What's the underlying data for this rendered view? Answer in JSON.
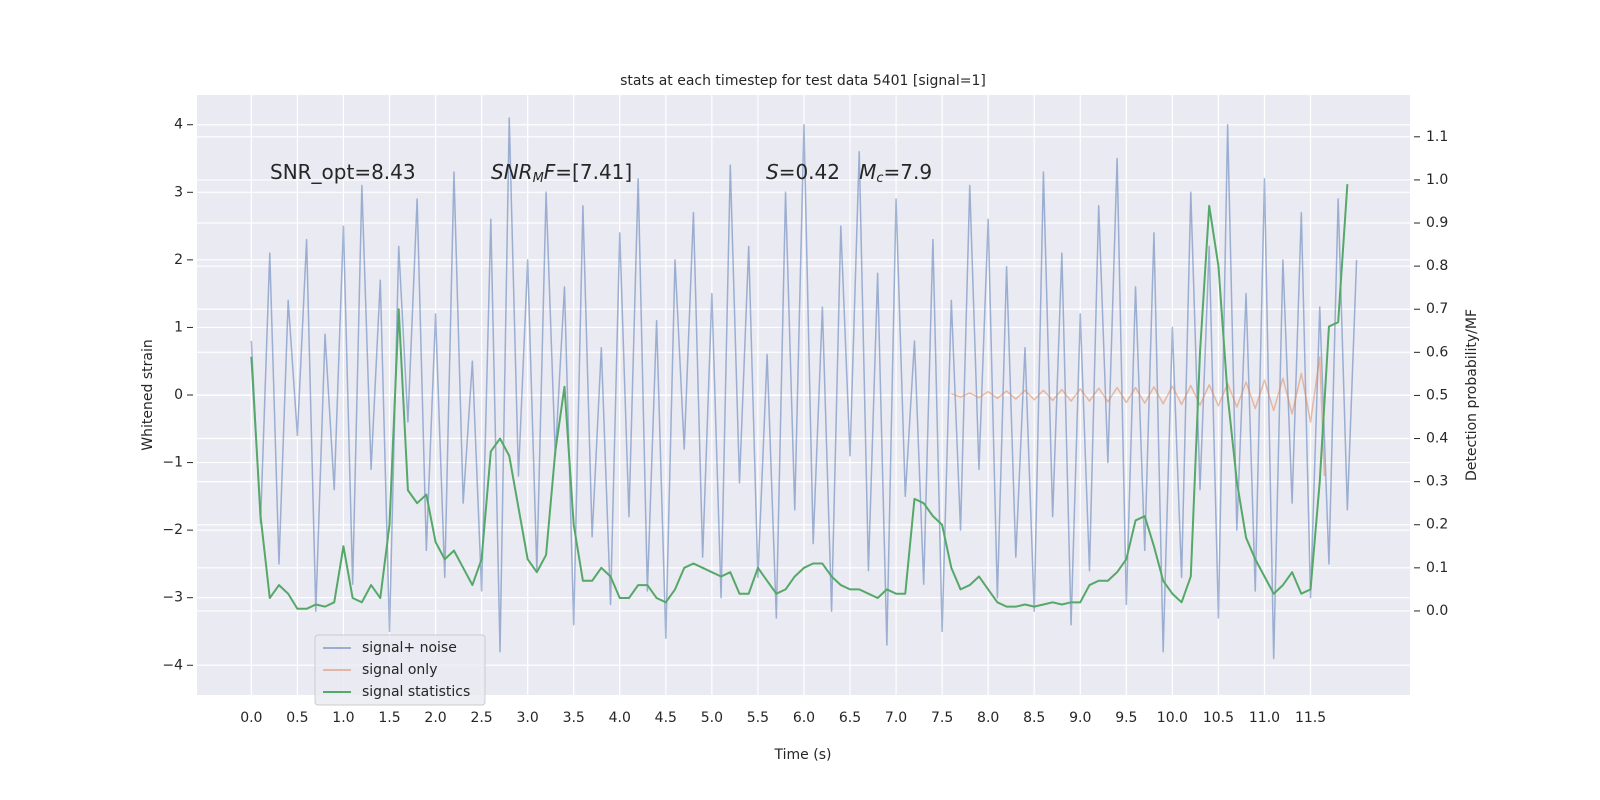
{
  "chart_data": {
    "type": "line",
    "title": "stats at each timestep for test data 5401 [signal=1]",
    "xlabel": "Time (s)",
    "ylabel": "Whitened strain",
    "y2label": "Detection probability/MF",
    "grid": true,
    "legend_loc": "lower left",
    "xlim": [
      -0.59,
      12.58
    ],
    "ylim": [
      -4.44,
      4.44
    ],
    "y2lim": [
      -0.195,
      1.197
    ],
    "xticks": [
      {
        "value": 0,
        "label": "0.0"
      },
      0.5,
      {
        "value": 1,
        "label": "1.0"
      },
      1.5,
      {
        "value": 2,
        "label": "2.0"
      },
      2.5,
      {
        "value": 3,
        "label": "3.0"
      },
      3.5,
      {
        "value": 4,
        "label": "4.0"
      },
      4.5,
      {
        "value": 5,
        "label": "5.0"
      },
      5.5,
      {
        "value": 6,
        "label": "6.0"
      },
      6.5,
      {
        "value": 7,
        "label": "7.0"
      },
      7.5,
      {
        "value": 8,
        "label": "8.0"
      },
      8.5,
      {
        "value": 9,
        "label": "9.0"
      },
      9.5,
      {
        "value": 10,
        "label": "10.0"
      },
      10.5,
      {
        "value": 11,
        "label": "11.0"
      },
      11.5
    ],
    "yticks": [
      {
        "value": -4,
        "label": "−4"
      },
      {
        "value": -3,
        "label": "−3"
      },
      {
        "value": -2,
        "label": "−2"
      },
      {
        "value": -1,
        "label": "−1"
      },
      0,
      1,
      2,
      3,
      4
    ],
    "y2ticks": [
      {
        "value": 0,
        "label": "0.0"
      },
      0.1,
      0.2,
      0.3,
      0.4,
      0.5,
      0.6,
      0.7,
      0.8,
      0.9,
      {
        "value": 1,
        "label": "1.0"
      },
      1.1
    ],
    "x": [
      0.0,
      0.1,
      0.2,
      0.3,
      0.4,
      0.5,
      0.6,
      0.7,
      0.8,
      0.9,
      1.0,
      1.1,
      1.2,
      1.3,
      1.4,
      1.5,
      1.6,
      1.7,
      1.8,
      1.9,
      2.0,
      2.1,
      2.2,
      2.3,
      2.4,
      2.5,
      2.6,
      2.7,
      2.8,
      2.9,
      3.0,
      3.1,
      3.2,
      3.3,
      3.4,
      3.5,
      3.6,
      3.7,
      3.8,
      3.9,
      4.0,
      4.1,
      4.2,
      4.3,
      4.4,
      4.5,
      4.6,
      4.7,
      4.8,
      4.9,
      5.0,
      5.1,
      5.2,
      5.3,
      5.4,
      5.5,
      5.6,
      5.7,
      5.8,
      5.9,
      6.0,
      6.1,
      6.2,
      6.3,
      6.4,
      6.5,
      6.6,
      6.7,
      6.8,
      6.9,
      7.0,
      7.1,
      7.2,
      7.3,
      7.4,
      7.5,
      7.6,
      7.7,
      7.8,
      7.9,
      8.0,
      8.1,
      8.2,
      8.3,
      8.4,
      8.5,
      8.6,
      8.7,
      8.8,
      8.9,
      9.0,
      9.1,
      9.2,
      9.3,
      9.4,
      9.5,
      9.6,
      9.7,
      9.8,
      9.9,
      10.0,
      10.1,
      10.2,
      10.3,
      10.4,
      10.5,
      10.6,
      10.7,
      10.8,
      10.9,
      11.0,
      11.1,
      11.2,
      11.3,
      11.4,
      11.5,
      11.6,
      11.7,
      11.8,
      11.9,
      12.0
    ],
    "series": [
      {
        "name": "signal+ noise",
        "color": "#4c72b0",
        "opacity": 0.5,
        "values": [
          0.8,
          -1.9,
          2.1,
          -2.5,
          1.4,
          -0.6,
          2.3,
          -3.2,
          0.9,
          -1.4,
          2.5,
          -2.8,
          3.1,
          -1.1,
          1.7,
          -3.5,
          2.2,
          -0.4,
          2.9,
          -2.3,
          1.2,
          -2.7,
          3.3,
          -1.6,
          0.5,
          -2.9,
          2.6,
          -3.8,
          4.1,
          -1.2,
          2.0,
          -2.6,
          3.0,
          -0.9,
          1.6,
          -3.4,
          2.8,
          -2.1,
          0.7,
          -3.1,
          2.4,
          -1.8,
          3.2,
          -2.9,
          1.1,
          -3.6,
          2.0,
          -0.8,
          2.7,
          -2.4,
          1.5,
          -3.0,
          3.4,
          -1.3,
          2.2,
          -2.7,
          0.6,
          -3.3,
          3.0,
          -1.7,
          4.0,
          -2.2,
          1.3,
          -3.2,
          2.5,
          -0.9,
          3.6,
          -2.6,
          1.8,
          -3.7,
          2.9,
          -1.5,
          0.8,
          -2.8,
          2.3,
          -3.5,
          1.4,
          -2.0,
          3.1,
          -1.1,
          2.6,
          -3.0,
          1.9,
          -2.4,
          0.7,
          -3.2,
          3.3,
          -1.8,
          2.1,
          -3.4,
          1.2,
          -2.6,
          2.8,
          -1.0,
          3.5,
          -3.1,
          1.6,
          -2.3,
          2.4,
          -3.8,
          1.0,
          -2.7,
          3.0,
          -1.4,
          2.2,
          -3.3,
          4.0,
          -2.0,
          1.5,
          -2.9,
          3.2,
          -3.9,
          2.0,
          -1.6,
          2.7,
          -3.0,
          1.3,
          -2.5,
          2.9,
          -1.7,
          2.0
        ]
      },
      {
        "name": "signal only",
        "color": "#dd8452",
        "opacity": 0.5,
        "x": [
          7.6,
          7.7,
          7.8,
          7.9,
          8.0,
          8.1,
          8.2,
          8.3,
          8.4,
          8.5,
          8.6,
          8.7,
          8.8,
          8.9,
          9.0,
          9.1,
          9.2,
          9.3,
          9.4,
          9.5,
          9.6,
          9.7,
          9.8,
          9.9,
          10.0,
          10.1,
          10.2,
          10.3,
          10.4,
          10.5,
          10.6,
          10.7,
          10.8,
          10.9,
          11.0,
          11.1,
          11.2,
          11.3,
          11.4,
          11.5,
          11.6,
          11.65
        ],
        "values": [
          0.02,
          -0.03,
          0.03,
          -0.04,
          0.05,
          -0.05,
          0.06,
          -0.06,
          0.07,
          -0.07,
          0.07,
          -0.08,
          0.08,
          -0.09,
          0.09,
          -0.09,
          0.1,
          -0.1,
          0.11,
          -0.11,
          0.11,
          -0.12,
          0.12,
          -0.13,
          0.13,
          -0.14,
          0.14,
          -0.15,
          0.15,
          -0.16,
          0.17,
          -0.18,
          0.19,
          -0.2,
          0.22,
          -0.23,
          0.25,
          -0.28,
          0.32,
          -0.4,
          0.56,
          -1.2
        ]
      },
      {
        "name": "signal statistics",
        "color": "#55a868",
        "opacity": 1,
        "axis": "y2",
        "values": [
          0.59,
          0.22,
          0.03,
          0.06,
          0.04,
          0.005,
          0.005,
          0.015,
          0.01,
          0.02,
          0.15,
          0.03,
          0.02,
          0.06,
          0.03,
          0.2,
          0.7,
          0.28,
          0.25,
          0.27,
          0.16,
          0.12,
          0.14,
          0.1,
          0.06,
          0.12,
          0.37,
          0.4,
          0.36,
          0.24,
          0.12,
          0.09,
          0.13,
          0.37,
          0.52,
          0.2,
          0.07,
          0.07,
          0.1,
          0.08,
          0.03,
          0.03,
          0.06,
          0.06,
          0.03,
          0.02,
          0.05,
          0.1,
          0.11,
          0.1,
          0.09,
          0.08,
          0.09,
          0.04,
          0.04,
          0.1,
          0.07,
          0.04,
          0.05,
          0.08,
          0.1,
          0.11,
          0.11,
          0.08,
          0.06,
          0.05,
          0.05,
          0.04,
          0.03,
          0.05,
          0.04,
          0.04,
          0.26,
          0.25,
          0.22,
          0.2,
          0.1,
          0.05,
          0.06,
          0.08,
          0.05,
          0.02,
          0.01,
          0.01,
          0.015,
          0.01,
          0.015,
          0.02,
          0.015,
          0.02,
          0.02,
          0.06,
          0.07,
          0.07,
          0.09,
          0.12,
          0.21,
          0.22,
          0.15,
          0.07,
          0.04,
          0.02,
          0.08,
          0.6,
          0.94,
          0.8,
          0.5,
          0.3,
          0.17,
          0.12,
          0.08,
          0.04,
          0.06,
          0.09,
          0.04,
          0.05,
          0.3,
          0.66,
          0.67,
          0.99,
          null
        ]
      }
    ],
    "annotations": [
      [
        {
          "text": "SNR_opt=8.43"
        }
      ],
      [
        {
          "text": "SNR",
          "italic": true
        },
        {
          "text": "M",
          "italic": true,
          "sub": true
        },
        {
          "text": "F",
          "italic": true
        },
        {
          "text": "=[7.41]"
        }
      ],
      [
        {
          "text": "S",
          "italic": true
        },
        {
          "text": "=0.42   "
        },
        {
          "text": "M",
          "italic": true
        },
        {
          "text": "c",
          "italic": true,
          "sub": true
        },
        {
          "text": "=7.9"
        }
      ]
    ]
  }
}
